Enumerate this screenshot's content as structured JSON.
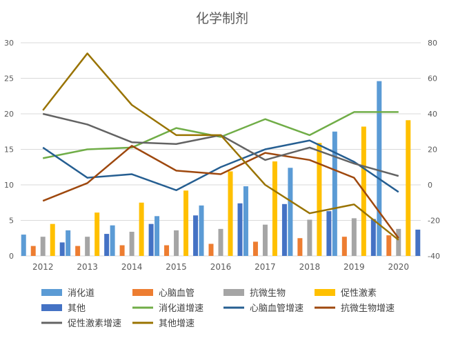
{
  "chart_data": {
    "type": "bar",
    "title": "化学制剂",
    "categories": [
      "2012",
      "2013",
      "2014",
      "2015",
      "2016",
      "2017",
      "2018",
      "2019",
      "2020"
    ],
    "y_left": {
      "min": 0,
      "max": 30,
      "ticks": [
        0,
        5,
        10,
        15,
        20,
        25,
        30
      ]
    },
    "y_right": {
      "min": -40,
      "max": 80,
      "ticks": [
        -40,
        -20,
        0,
        20,
        40,
        60,
        80
      ]
    },
    "grid": true,
    "legend_position": "bottom",
    "bar_series": [
      {
        "name": "消化道",
        "color": "#5b9bd5",
        "values": [
          3.0,
          3.6,
          4.3,
          5.6,
          7.1,
          9.8,
          12.4,
          17.5,
          24.6
        ]
      },
      {
        "name": "心脑血管",
        "color": "#ed7d31",
        "values": [
          1.4,
          1.4,
          1.5,
          1.5,
          1.7,
          2.0,
          2.5,
          2.7,
          2.9
        ]
      },
      {
        "name": "抗微生物",
        "color": "#a5a5a5",
        "values": [
          2.7,
          2.7,
          3.4,
          3.6,
          3.8,
          4.4,
          5.1,
          5.3,
          3.8
        ]
      },
      {
        "name": "促性激素",
        "color": "#ffc000",
        "values": [
          4.5,
          6.1,
          7.5,
          9.2,
          11.9,
          13.3,
          15.9,
          18.2,
          19.1
        ]
      },
      {
        "name": "其他",
        "color": "#4472c4",
        "values": [
          1.9,
          3.1,
          4.5,
          5.7,
          7.4,
          7.3,
          6.3,
          5.2,
          3.7
        ]
      }
    ],
    "line_series": [
      {
        "name": "消化道增速",
        "color": "#70ad47",
        "values": [
          15,
          20,
          21,
          32,
          27,
          37,
          28,
          41,
          41
        ]
      },
      {
        "name": "心脑血管增速",
        "color": "#255e91",
        "values": [
          21,
          4,
          6,
          -3,
          10,
          20,
          25,
          13,
          -4
        ]
      },
      {
        "name": "抗微生物增速",
        "color": "#9e480e",
        "values": [
          -9,
          1,
          22,
          8,
          6,
          18,
          14,
          4,
          -30
        ]
      },
      {
        "name": "促性激素增速",
        "color": "#636363",
        "values": [
          40,
          34,
          24,
          23,
          28,
          14,
          21,
          12,
          5
        ]
      },
      {
        "name": "其他增速",
        "color": "#997300",
        "values": [
          42,
          74,
          45,
          28,
          28,
          0,
          -16,
          -11,
          -31
        ]
      }
    ]
  }
}
